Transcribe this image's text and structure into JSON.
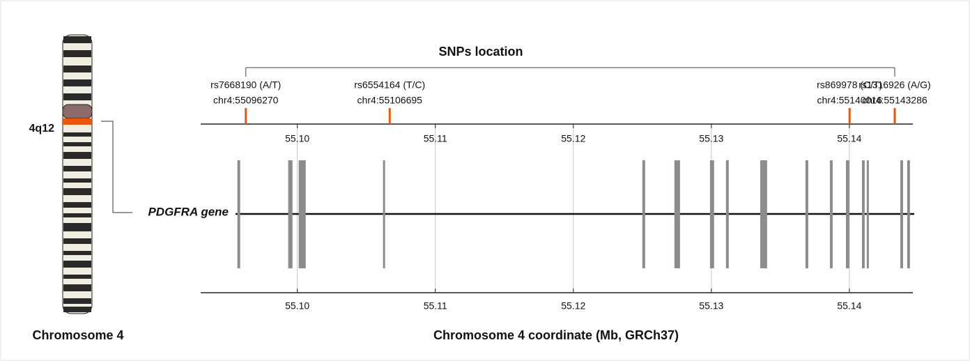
{
  "chart_data": {
    "type": "gene-track",
    "title": "SNPs location",
    "xlabel": "Chromosome 4 coordinate (Mb, GRCh37)",
    "gene_label": "PDGFRA gene",
    "chromosome_label": "Chromosome 4",
    "band_label": "4q12",
    "xlim": [
      55.093,
      55.1446
    ],
    "xticks": [
      {
        "value": 55.1,
        "label": "55.10"
      },
      55.11,
      55.12,
      55.13,
      55.14
    ],
    "grid": true,
    "snp_color": "#e8560f",
    "exon_color": "#8c8c8c",
    "snps": [
      {
        "name": "rs7668190 (A/T)",
        "position_label": "chr4:55096270",
        "position": 55.09627
      },
      {
        "name": "rs6554164 (T/C)",
        "position_label": "chr4:55106695",
        "position": 55.106695
      },
      {
        "name": "rs869978 (C/T)",
        "position_label": "chr4:55140016",
        "position": 55.140016
      },
      {
        "name": "rs1316926 (A/G)",
        "position_label": "chr4:55143286",
        "position": 55.143286
      }
    ],
    "exons": [
      {
        "start": 55.09566,
        "end": 55.09586
      },
      {
        "start": 55.09934,
        "end": 55.09965
      },
      {
        "start": 55.1001,
        "end": 55.10061
      },
      {
        "start": 55.10621,
        "end": 55.10636
      },
      {
        "start": 55.125,
        "end": 55.1252
      },
      {
        "start": 55.12732,
        "end": 55.12773
      },
      {
        "start": 55.1299,
        "end": 55.1302
      },
      {
        "start": 55.13106,
        "end": 55.13126
      },
      {
        "start": 55.13354,
        "end": 55.13404
      },
      {
        "start": 55.13682,
        "end": 55.13702
      },
      {
        "start": 55.13859,
        "end": 55.13879
      },
      {
        "start": 55.13975,
        "end": 55.14
      },
      {
        "start": 55.14091,
        "end": 55.14111
      },
      {
        "start": 55.14126,
        "end": 55.14141
      },
      {
        "start": 55.14369,
        "end": 55.14389
      },
      {
        "start": 55.14419,
        "end": 55.14439
      }
    ]
  }
}
